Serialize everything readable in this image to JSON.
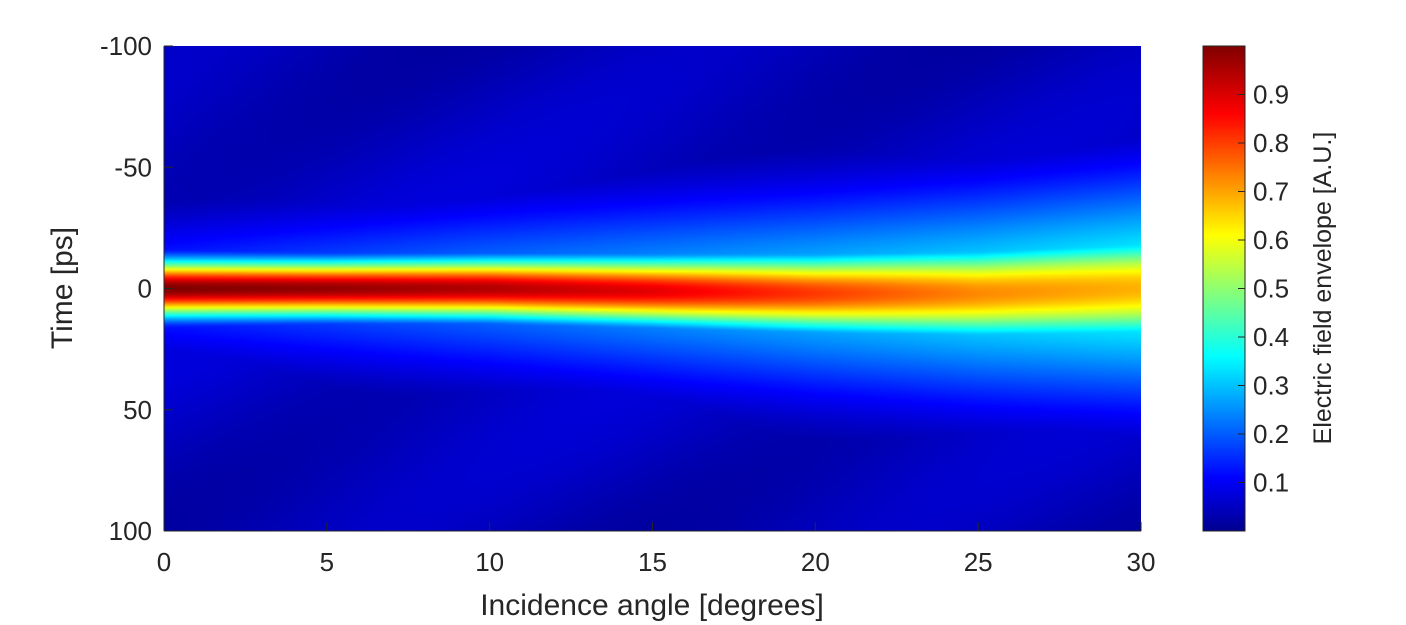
{
  "chart_data": {
    "type": "heatmap",
    "title": "",
    "xlabel": "Incidence angle [degrees]",
    "ylabel": "Time [ps]",
    "xlim": [
      0,
      30
    ],
    "ylim": [
      -100,
      100
    ],
    "y_reversed": true,
    "x_ticks": [
      "0",
      "5",
      "10",
      "15",
      "20",
      "25",
      "30"
    ],
    "y_ticks": [
      "-100",
      "-50",
      "0",
      "50",
      "100"
    ],
    "colorbar": {
      "label": "Electric field envelope [A.U.]",
      "colormap": "jet",
      "range": [
        0,
        1
      ],
      "ticks": [
        "0.1",
        "0.2",
        "0.3",
        "0.4",
        "0.5",
        "0.6",
        "0.7",
        "0.8",
        "0.9"
      ]
    },
    "ridge_profile": {
      "angle": [
        0,
        5,
        10,
        15,
        20,
        25,
        30
      ],
      "peak_value": [
        1.0,
        0.98,
        0.95,
        0.9,
        0.82,
        0.74,
        0.7
      ],
      "center_time_ps": [
        0,
        0,
        0,
        1,
        2,
        2,
        0
      ],
      "width_ps": [
        8,
        8,
        8.5,
        9.5,
        11,
        13,
        15
      ]
    },
    "background_level": 0.08,
    "grid": false
  }
}
